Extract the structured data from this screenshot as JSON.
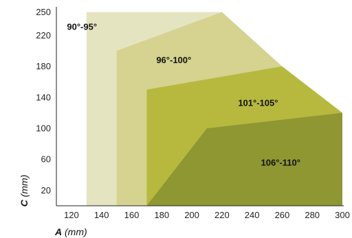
{
  "chart_data": {
    "type": "area",
    "x_axis": {
      "label_var": "A",
      "label_unit": "(mm)",
      "ticks": [
        120,
        140,
        160,
        180,
        200,
        220,
        240,
        260,
        280,
        300
      ],
      "range": [
        110,
        300
      ]
    },
    "y_axis": {
      "label_var": "C",
      "label_unit": "(mm)",
      "ticks": [
        20,
        60,
        100,
        140,
        180,
        220,
        250
      ],
      "range": [
        0,
        255
      ]
    },
    "regions": [
      {
        "name": "90°-95°",
        "color": "#e5e4c0",
        "boundary": [
          [
            130,
            0
          ],
          [
            130,
            250
          ],
          [
            220,
            250
          ]
        ],
        "label_at": [
          127,
          227
        ]
      },
      {
        "name": "96°-100°",
        "color": "#d5d38f",
        "boundary": [
          [
            150,
            0
          ],
          [
            150,
            200
          ],
          [
            220,
            250
          ],
          [
            260,
            180
          ]
        ],
        "label_at": [
          188,
          184
        ]
      },
      {
        "name": "101°-105°",
        "color": "#b7b93f",
        "boundary": [
          [
            170,
            0
          ],
          [
            170,
            150
          ],
          [
            260,
            180
          ],
          [
            300,
            120
          ]
        ],
        "label_at": [
          244,
          129
        ]
      },
      {
        "name": "106°-110°",
        "color": "#8f9733",
        "boundary": [
          [
            170,
            0
          ],
          [
            210,
            100
          ],
          [
            300,
            120
          ],
          [
            300,
            0
          ]
        ],
        "label_at": [
          259,
          52
        ]
      }
    ]
  }
}
